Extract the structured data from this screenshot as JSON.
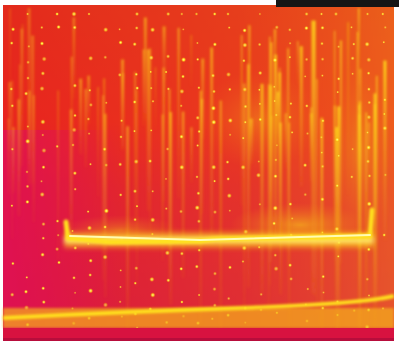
{
  "image": {
    "kind": "thermal-heat-map-photo",
    "palette": {
      "background_white": "#ffffff",
      "dark_corner": "#151515",
      "deep_red": "#d4102e",
      "red": "#e8201e",
      "orange": "#f07a1a",
      "yellow": "#ffe21a",
      "hot_white": "#fffcb4",
      "magenta": "#e01058"
    },
    "features": [
      "vertical-hot-streaks",
      "grid-of-hot-dots",
      "horizontal-hot-bar",
      "bright-bottom-band"
    ]
  }
}
